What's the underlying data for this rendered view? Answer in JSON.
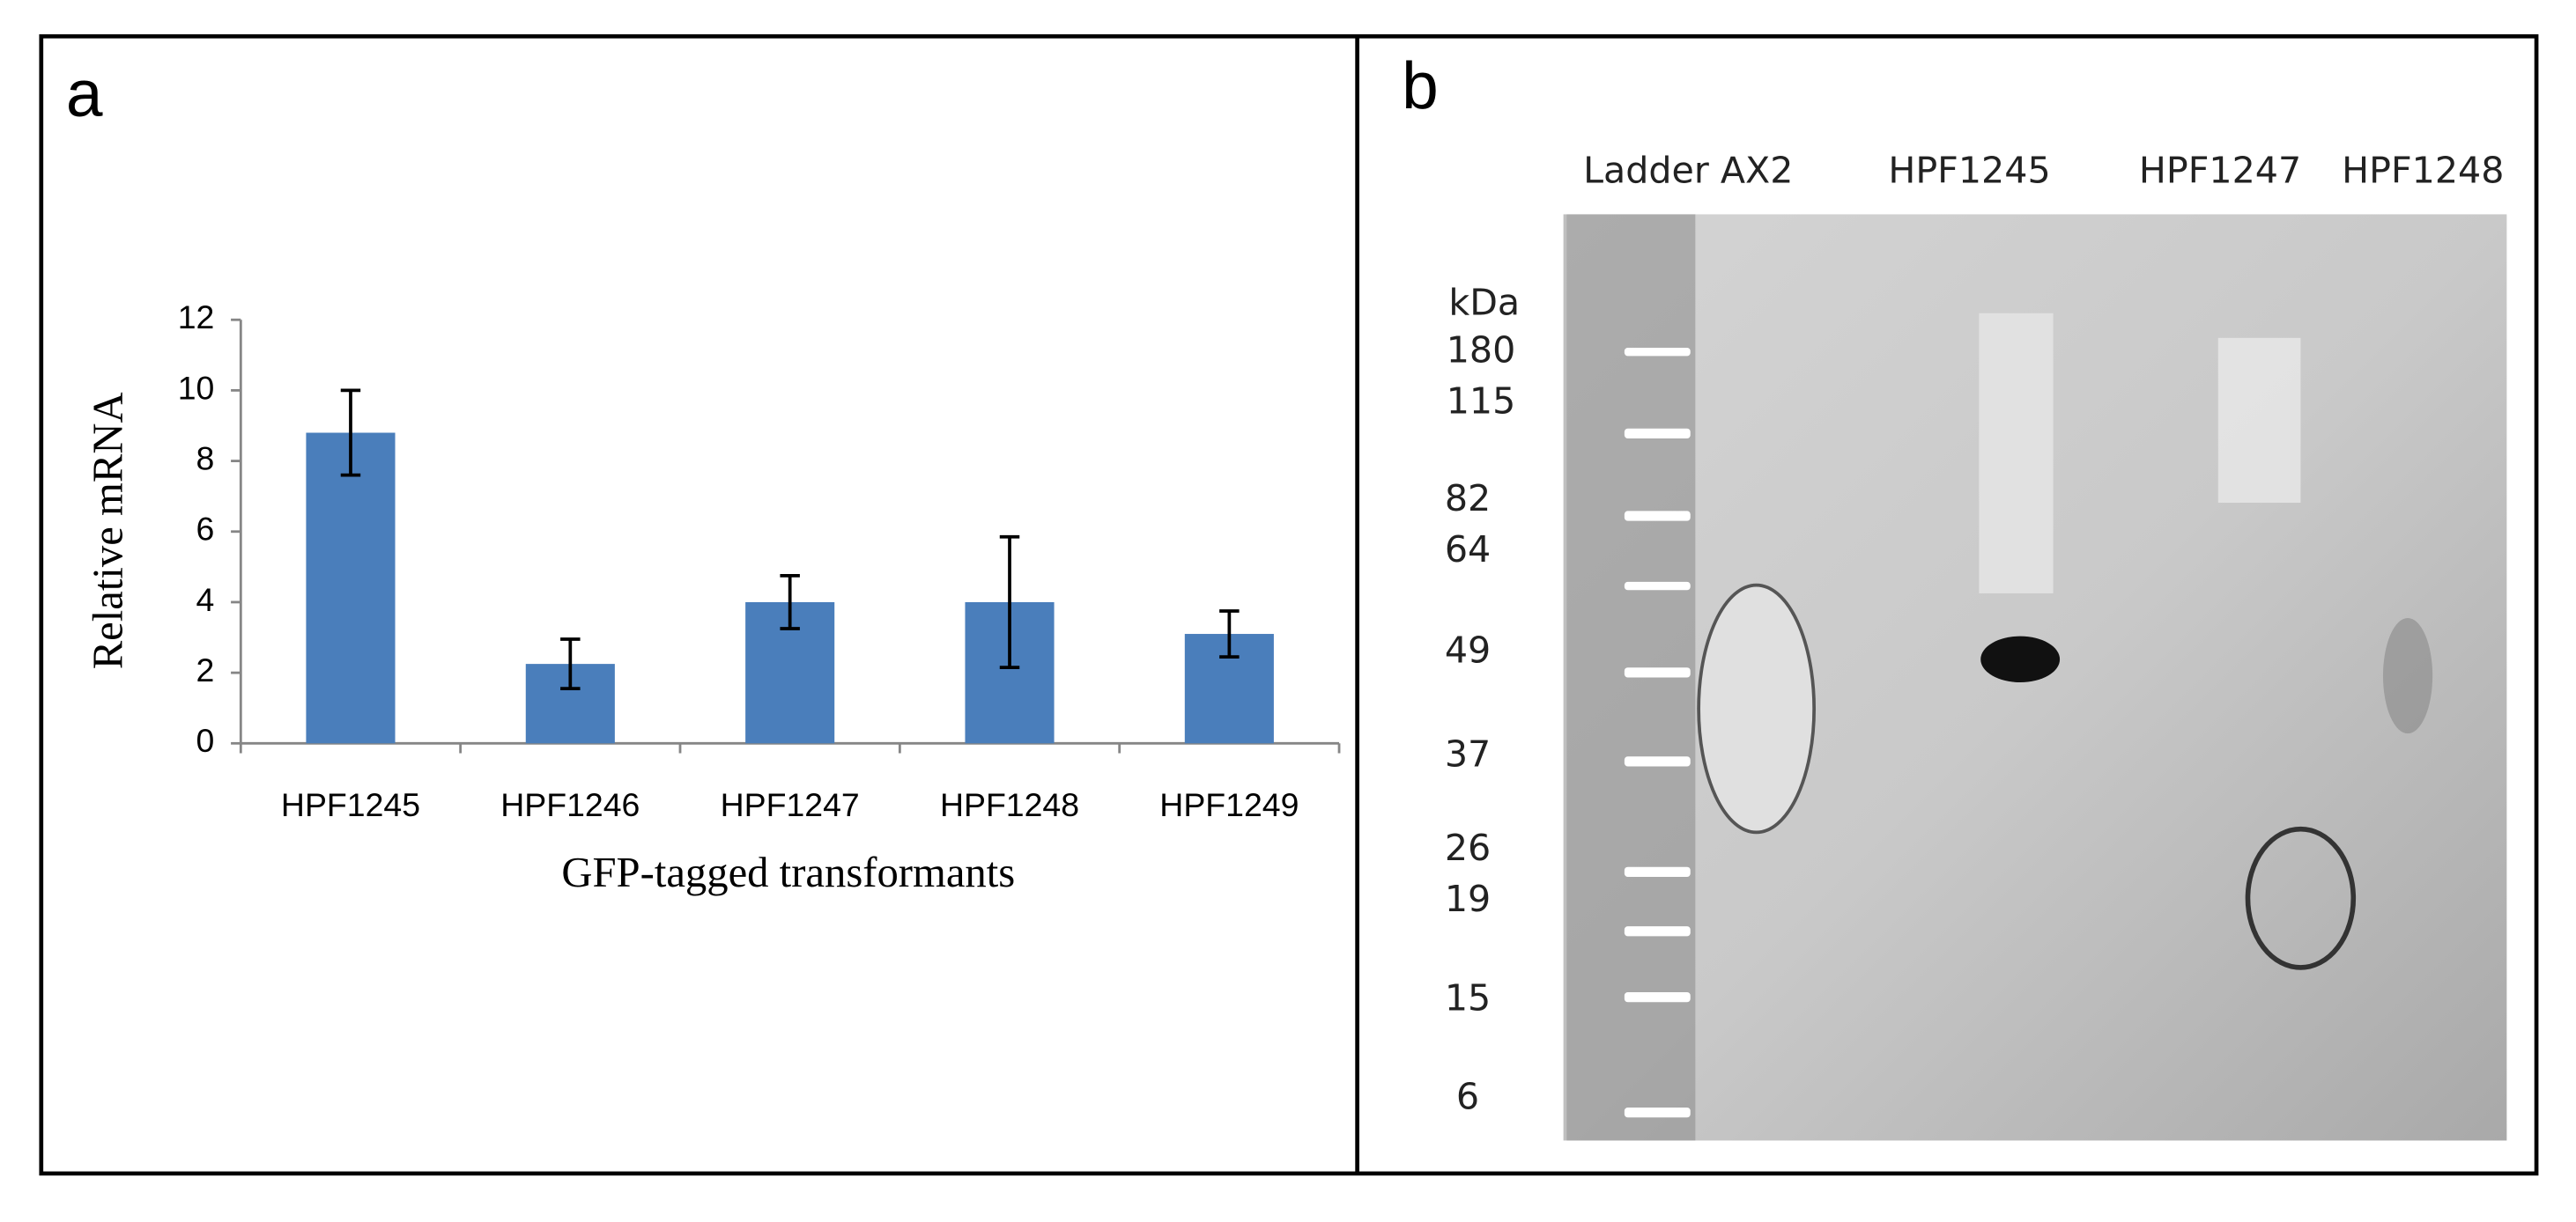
{
  "chart_data": {
    "type": "bar",
    "panel_label": "a",
    "x_label": "GFP-tagged transformants",
    "y_label": "Relative mRNA",
    "categories": [
      "HPF1245",
      "HPF1246",
      "HPF1247",
      "HPF1248",
      "HPF1249"
    ],
    "values": [
      8.8,
      2.25,
      4.0,
      4.0,
      3.1
    ],
    "errors": [
      1.2,
      0.7,
      0.75,
      1.85,
      0.65
    ],
    "color": "#4a7ebb",
    "ylim": [
      0,
      12
    ],
    "yticks": [
      0,
      2,
      4,
      6,
      8,
      10,
      12
    ],
    "grid": false
  },
  "blot": {
    "panel_label": "b",
    "lanes": [
      "Ladder AX2",
      "HPF1245",
      "HPF1247",
      "HPF1248"
    ],
    "unit": "kDa",
    "markers": [
      "180",
      "115",
      "82",
      "64",
      "49",
      "37",
      "26",
      "19",
      "15",
      "6"
    ]
  }
}
